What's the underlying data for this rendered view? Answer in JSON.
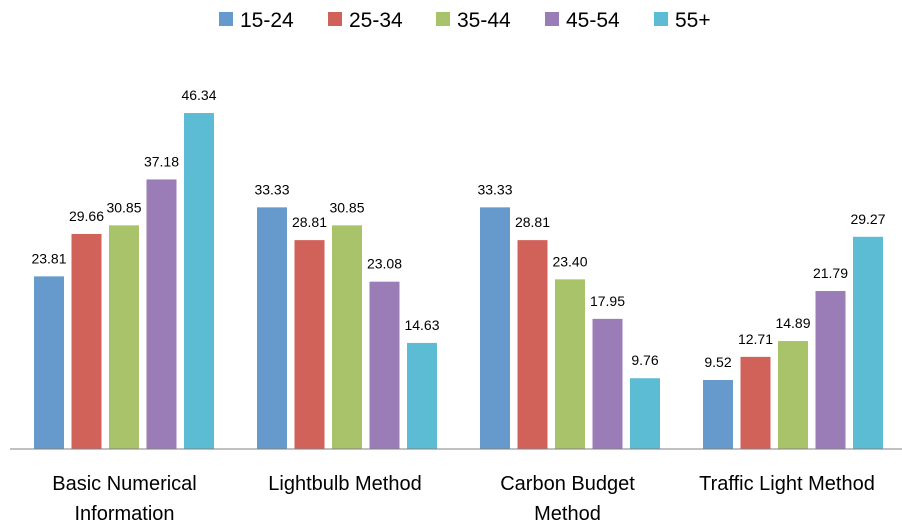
{
  "chart_data": {
    "type": "bar",
    "categories": [
      [
        "Basic Numerical",
        "Information"
      ],
      [
        "Lightbulb Method"
      ],
      [
        "Carbon Budget",
        "Method"
      ],
      [
        "Traffic Light Method"
      ]
    ],
    "series": [
      {
        "name": "15-24",
        "color": "#6699CC",
        "values": [
          23.81,
          33.33,
          33.33,
          9.52
        ],
        "labels": [
          "23.81",
          "33.33",
          "33.33",
          "9.52"
        ]
      },
      {
        "name": "25-34",
        "color": "#D0625A",
        "values": [
          29.66,
          28.81,
          28.81,
          12.71
        ],
        "labels": [
          "29.66",
          "28.81",
          "28.81",
          "12.71"
        ]
      },
      {
        "name": "35-44",
        "color": "#A8C36A",
        "values": [
          30.85,
          30.85,
          23.4,
          14.89
        ],
        "labels": [
          "30.85",
          "30.85",
          "23.40",
          "14.89"
        ]
      },
      {
        "name": "45-54",
        "color": "#9A7DB7",
        "values": [
          37.18,
          23.08,
          17.95,
          21.79
        ],
        "labels": [
          "37.18",
          "23.08",
          "17.95",
          "21.79"
        ]
      },
      {
        "name": "55+",
        "color": "#5CBCD3",
        "values": [
          46.34,
          14.63,
          9.76,
          29.27
        ],
        "labels": [
          "46.34",
          "14.63",
          "9.76",
          "29.27"
        ]
      }
    ],
    "ylim": [
      0,
      50
    ],
    "legend": "top",
    "grid": false
  }
}
